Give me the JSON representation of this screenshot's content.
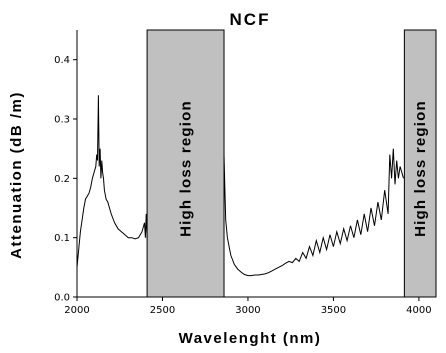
{
  "chart_data": {
    "type": "line",
    "title": "NCF",
    "xlabel": "Wavelenght (nm)",
    "ylabel": "Attenuation (dB /m)",
    "xlim": [
      2000,
      4100
    ],
    "ylim": [
      0,
      0.45
    ],
    "x_ticks": [
      2000,
      2500,
      3000,
      3500,
      4000
    ],
    "y_ticks": [
      0.0,
      0.1,
      0.2,
      0.3,
      0.4
    ],
    "x_tick_labels": [
      "2000",
      "2500",
      "3000",
      "3500",
      "4000"
    ],
    "y_tick_labels": [
      "0.0",
      "0.1",
      "0.2",
      "0.3",
      "0.4"
    ],
    "grid": false,
    "series": [
      {
        "color": "#000000",
        "x": [
          2000,
          2010,
          2020,
          2030,
          2040,
          2050,
          2060,
          2070,
          2080,
          2090,
          2100,
          2110,
          2115,
          2120,
          2125,
          2130,
          2135,
          2140,
          2145,
          2150,
          2155,
          2160,
          2170,
          2180,
          2200,
          2220,
          2240,
          2260,
          2280,
          2300,
          2320,
          2340,
          2360,
          2380,
          2395,
          2400,
          2405,
          2410,
          2860,
          2865,
          2870,
          2880,
          2890,
          2900,
          2920,
          2940,
          2960,
          2980,
          3000,
          3020,
          3040,
          3060,
          3080,
          3100,
          3120,
          3140,
          3160,
          3180,
          3200,
          3220,
          3240,
          3260,
          3280,
          3300,
          3320,
          3340,
          3360,
          3380,
          3400,
          3420,
          3440,
          3460,
          3480,
          3500,
          3520,
          3540,
          3560,
          3580,
          3600,
          3620,
          3640,
          3660,
          3680,
          3700,
          3720,
          3740,
          3760,
          3780,
          3800,
          3820,
          3830,
          3840,
          3850,
          3860,
          3870,
          3880,
          3890,
          3900,
          3910
        ],
        "y": [
          0.05,
          0.08,
          0.11,
          0.13,
          0.15,
          0.165,
          0.17,
          0.175,
          0.185,
          0.2,
          0.21,
          0.22,
          0.24,
          0.23,
          0.34,
          0.22,
          0.25,
          0.2,
          0.23,
          0.21,
          0.2,
          0.18,
          0.165,
          0.16,
          0.14,
          0.125,
          0.115,
          0.11,
          0.105,
          0.1,
          0.1,
          0.098,
          0.1,
          0.11,
          0.125,
          0.1,
          0.14,
          0.1,
          0.24,
          0.18,
          0.13,
          0.1,
          0.085,
          0.07,
          0.055,
          0.047,
          0.042,
          0.038,
          0.036,
          0.036,
          0.037,
          0.037,
          0.038,
          0.039,
          0.041,
          0.044,
          0.047,
          0.05,
          0.053,
          0.057,
          0.06,
          0.058,
          0.065,
          0.06,
          0.075,
          0.065,
          0.085,
          0.07,
          0.095,
          0.075,
          0.1,
          0.08,
          0.105,
          0.085,
          0.11,
          0.09,
          0.115,
          0.095,
          0.12,
          0.1,
          0.13,
          0.105,
          0.14,
          0.11,
          0.15,
          0.12,
          0.16,
          0.13,
          0.18,
          0.14,
          0.24,
          0.2,
          0.25,
          0.19,
          0.23,
          0.2,
          0.22,
          0.21,
          0.2
        ]
      }
    ],
    "regions": [
      {
        "x_start": 2410,
        "x_end": 2860,
        "label": "High loss region",
        "color": "#c0c0c0"
      },
      {
        "x_start": 3915,
        "x_end": 4100,
        "label": "High loss region",
        "color": "#c0c0c0"
      }
    ]
  }
}
